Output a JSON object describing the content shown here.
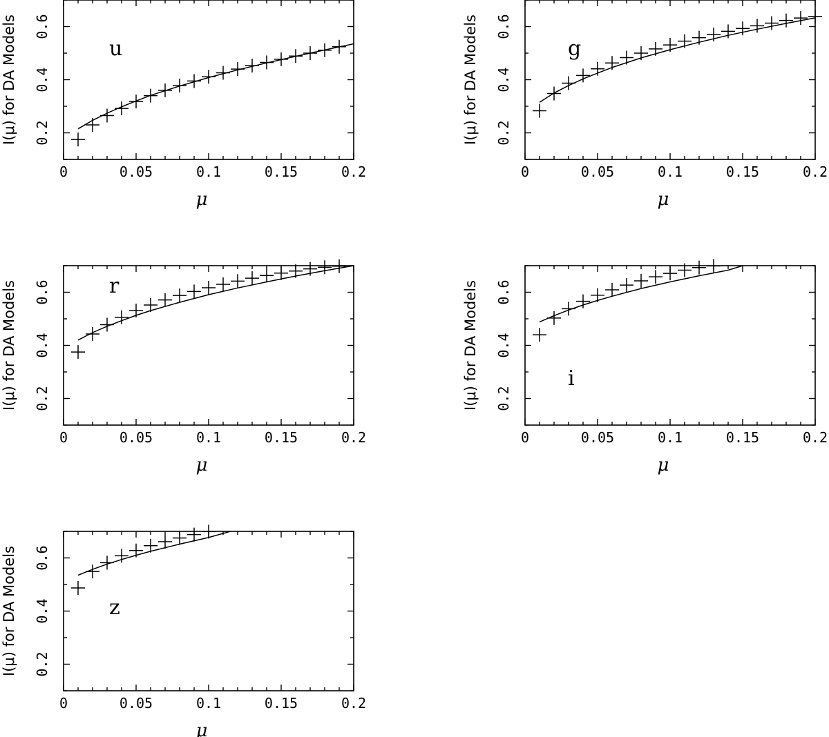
{
  "chart_data": [
    {
      "type": "scatter",
      "band_label": "u",
      "xlabel": "μ",
      "ylabel": "I(μ) for DA Models",
      "xlim": [
        0,
        0.2
      ],
      "ylim": [
        0.1,
        0.7
      ],
      "x_ticks": [
        0,
        0.05,
        0.1,
        0.15,
        0.2
      ],
      "x_tick_labels": [
        "0",
        "0.05",
        "0.1",
        "0.15",
        "0.2"
      ],
      "y_ticks": [
        0.2,
        0.4,
        0.6
      ],
      "y_tick_labels": [
        "0.2",
        "0.4",
        "0.6"
      ],
      "points": {
        "x": [
          0.01,
          0.02,
          0.03,
          0.04,
          0.05,
          0.06,
          0.07,
          0.08,
          0.09,
          0.1,
          0.11,
          0.12,
          0.13,
          0.14,
          0.15,
          0.16,
          0.17,
          0.18,
          0.19
        ],
        "y": [
          0.175,
          0.23,
          0.265,
          0.292,
          0.318,
          0.34,
          0.36,
          0.378,
          0.395,
          0.411,
          0.426,
          0.44,
          0.453,
          0.465,
          0.477,
          0.489,
          0.5,
          0.511,
          0.524
        ]
      },
      "curve": {
        "x": [
          0.01,
          0.02,
          0.03,
          0.04,
          0.05,
          0.06,
          0.08,
          0.1,
          0.12,
          0.14,
          0.16,
          0.18,
          0.2
        ],
        "y": [
          0.215,
          0.247,
          0.274,
          0.298,
          0.32,
          0.341,
          0.376,
          0.408,
          0.437,
          0.463,
          0.488,
          0.512,
          0.535
        ]
      }
    },
    {
      "type": "scatter",
      "band_label": "g",
      "xlabel": "μ",
      "ylabel": "I(μ) for DA Models",
      "xlim": [
        0,
        0.2
      ],
      "ylim": [
        0.1,
        0.7
      ],
      "x_ticks": [
        0,
        0.05,
        0.1,
        0.15,
        0.2
      ],
      "x_tick_labels": [
        "0",
        "0.05",
        "0.1",
        "0.15",
        "0.2"
      ],
      "y_ticks": [
        0.2,
        0.4,
        0.6
      ],
      "y_tick_labels": [
        "0.2",
        "0.4",
        "0.6"
      ],
      "points": {
        "x": [
          0.01,
          0.02,
          0.03,
          0.04,
          0.05,
          0.06,
          0.07,
          0.08,
          0.09,
          0.1,
          0.11,
          0.12,
          0.13,
          0.14,
          0.15,
          0.16,
          0.17,
          0.18,
          0.19,
          0.2
        ],
        "y": [
          0.283,
          0.348,
          0.387,
          0.416,
          0.441,
          0.463,
          0.483,
          0.5,
          0.516,
          0.531,
          0.545,
          0.558,
          0.57,
          0.582,
          0.593,
          0.603,
          0.613,
          0.623,
          0.632,
          0.638
        ]
      },
      "curve": {
        "x": [
          0.01,
          0.02,
          0.03,
          0.04,
          0.05,
          0.06,
          0.08,
          0.1,
          0.12,
          0.14,
          0.16,
          0.18,
          0.2
        ],
        "y": [
          0.315,
          0.35,
          0.378,
          0.403,
          0.425,
          0.446,
          0.482,
          0.513,
          0.541,
          0.567,
          0.59,
          0.612,
          0.633
        ]
      }
    },
    {
      "type": "scatter",
      "band_label": "r",
      "xlabel": "μ",
      "ylabel": "I(μ) for DA Models",
      "xlim": [
        0,
        0.2
      ],
      "ylim": [
        0.1,
        0.7
      ],
      "x_ticks": [
        0,
        0.05,
        0.1,
        0.15,
        0.2
      ],
      "x_tick_labels": [
        "0",
        "0.05",
        "0.1",
        "0.15",
        "0.2"
      ],
      "y_ticks": [
        0.2,
        0.4,
        0.6
      ],
      "y_tick_labels": [
        "0.2",
        "0.4",
        "0.6"
      ],
      "points": {
        "x": [
          0.01,
          0.02,
          0.03,
          0.04,
          0.05,
          0.06,
          0.07,
          0.08,
          0.09,
          0.1,
          0.11,
          0.12,
          0.13,
          0.14,
          0.15,
          0.16,
          0.17,
          0.18,
          0.19
        ],
        "y": [
          0.375,
          0.443,
          0.478,
          0.506,
          0.531,
          0.552,
          0.571,
          0.588,
          0.603,
          0.617,
          0.63,
          0.642,
          0.653,
          0.663,
          0.672,
          0.68,
          0.688,
          0.694,
          0.698
        ]
      },
      "curve": {
        "x": [
          0.01,
          0.02,
          0.03,
          0.04,
          0.05,
          0.06,
          0.08,
          0.1,
          0.12,
          0.14,
          0.16,
          0.18,
          0.2
        ],
        "y": [
          0.42,
          0.448,
          0.472,
          0.493,
          0.513,
          0.531,
          0.562,
          0.591,
          0.616,
          0.639,
          0.661,
          0.681,
          0.7
        ]
      }
    },
    {
      "type": "scatter",
      "band_label": "i",
      "xlabel": "μ",
      "ylabel": "I(μ) for DA Models",
      "xlim": [
        0,
        0.2
      ],
      "ylim": [
        0.1,
        0.7
      ],
      "x_ticks": [
        0,
        0.05,
        0.1,
        0.15,
        0.2
      ],
      "x_tick_labels": [
        "0",
        "0.05",
        "0.1",
        "0.15",
        "0.2"
      ],
      "y_ticks": [
        0.2,
        0.4,
        0.6
      ],
      "y_tick_labels": [
        "0.2",
        "0.4",
        "0.6"
      ],
      "points": {
        "x": [
          0.01,
          0.02,
          0.03,
          0.04,
          0.05,
          0.06,
          0.07,
          0.08,
          0.09,
          0.1,
          0.11,
          0.12,
          0.13
        ],
        "y": [
          0.44,
          0.503,
          0.538,
          0.566,
          0.589,
          0.609,
          0.627,
          0.643,
          0.658,
          0.671,
          0.683,
          0.693,
          0.699
        ]
      },
      "curve": {
        "x": [
          0.01,
          0.02,
          0.03,
          0.04,
          0.05,
          0.06,
          0.08,
          0.1,
          0.12,
          0.14,
          0.15
        ],
        "y": [
          0.488,
          0.512,
          0.533,
          0.552,
          0.569,
          0.585,
          0.614,
          0.639,
          0.662,
          0.683,
          0.7
        ]
      }
    },
    {
      "type": "scatter",
      "band_label": "z",
      "xlabel": "μ",
      "ylabel": "I(μ) for DA Models",
      "xlim": [
        0,
        0.2
      ],
      "ylim": [
        0.1,
        0.7
      ],
      "x_ticks": [
        0,
        0.05,
        0.1,
        0.15,
        0.2
      ],
      "x_tick_labels": [
        "0",
        "0.05",
        "0.1",
        "0.15",
        "0.2"
      ],
      "y_ticks": [
        0.2,
        0.4,
        0.6
      ],
      "y_tick_labels": [
        "0.2",
        "0.4",
        "0.6"
      ],
      "points": {
        "x": [
          0.01,
          0.02,
          0.03,
          0.04,
          0.05,
          0.06,
          0.07,
          0.08,
          0.09,
          0.1
        ],
        "y": [
          0.487,
          0.549,
          0.582,
          0.608,
          0.628,
          0.646,
          0.661,
          0.675,
          0.688,
          0.699
        ]
      },
      "curve": {
        "x": [
          0.01,
          0.02,
          0.03,
          0.04,
          0.05,
          0.06,
          0.08,
          0.1,
          0.115
        ],
        "y": [
          0.535,
          0.557,
          0.577,
          0.594,
          0.61,
          0.625,
          0.652,
          0.677,
          0.7
        ]
      }
    }
  ]
}
